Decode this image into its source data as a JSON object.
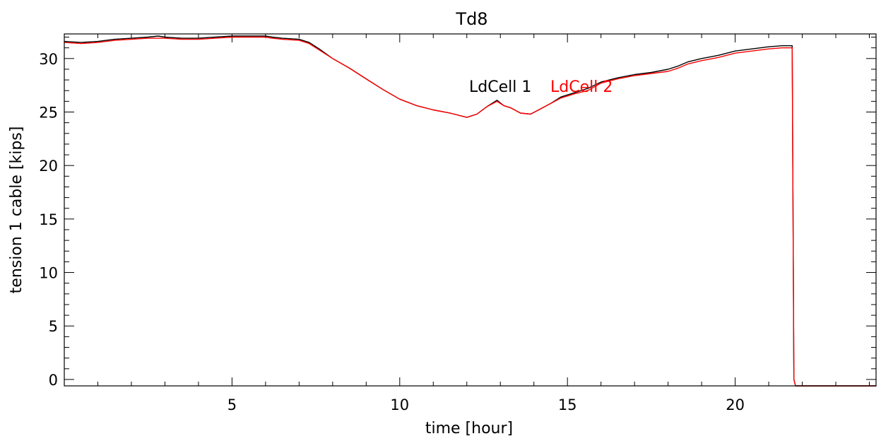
{
  "chart_data": {
    "type": "line",
    "title": "Td8",
    "xlabel": "time [hour]",
    "ylabel": "tension 1 cable [kips]",
    "xlim": [
      0.0,
      24.2
    ],
    "ylim": [
      -0.6,
      32.3
    ],
    "xticks": [
      5,
      10,
      15,
      20
    ],
    "xtick_labels": [
      "5",
      "10",
      "15",
      "20"
    ],
    "yticks": [
      0,
      5,
      10,
      15,
      20,
      25,
      30
    ],
    "ytick_labels": [
      "0",
      "5",
      "10",
      "15",
      "20",
      "25",
      "30"
    ],
    "x_minor_step": 1,
    "y_minor_step": 1,
    "grid": false,
    "legend_placement": "inside-top-center",
    "series": [
      {
        "name": "LdCell 1",
        "color": "#000000",
        "x": [
          0.0,
          0.5,
          1.0,
          1.5,
          2.0,
          2.5,
          2.8,
          3.0,
          3.5,
          4.0,
          4.5,
          5.0,
          5.5,
          6.0,
          6.2,
          6.5,
          7.0,
          7.3,
          7.6,
          8.0,
          8.5,
          9.0,
          9.5,
          10.0,
          10.5,
          11.0,
          11.5,
          12.0,
          12.3,
          12.6,
          12.9,
          13.1,
          13.3,
          13.6,
          13.9,
          14.2,
          14.5,
          14.8,
          15.2,
          15.6,
          16.0,
          16.5,
          17.0,
          17.5,
          18.0,
          18.3,
          18.6,
          19.0,
          19.5,
          20.0,
          20.5,
          21.0,
          21.4,
          21.7,
          21.75,
          21.8,
          22.5,
          23.5,
          24.2
        ],
        "y": [
          31.6,
          31.5,
          31.6,
          31.8,
          31.9,
          32.0,
          32.1,
          32.0,
          31.9,
          31.9,
          32.0,
          32.1,
          32.1,
          32.1,
          32.0,
          31.9,
          31.8,
          31.5,
          30.9,
          30.0,
          29.1,
          28.1,
          27.1,
          26.2,
          25.6,
          25.2,
          24.9,
          24.5,
          24.8,
          25.5,
          26.1,
          25.6,
          25.4,
          24.9,
          24.8,
          25.3,
          25.8,
          26.4,
          26.8,
          27.2,
          27.8,
          28.2,
          28.5,
          28.7,
          29.0,
          29.3,
          29.7,
          30.0,
          30.3,
          30.7,
          30.9,
          31.1,
          31.2,
          31.2,
          0.0,
          -0.6,
          -0.6,
          -0.6,
          -0.6
        ]
      },
      {
        "name": "LdCell 2",
        "color": "#ff0000",
        "x": [
          0.0,
          0.5,
          1.0,
          1.5,
          2.0,
          2.5,
          2.8,
          3.0,
          3.5,
          4.0,
          4.5,
          5.0,
          5.5,
          6.0,
          6.2,
          6.5,
          7.0,
          7.3,
          7.6,
          8.0,
          8.5,
          9.0,
          9.5,
          10.0,
          10.5,
          11.0,
          11.5,
          12.0,
          12.3,
          12.6,
          12.9,
          13.1,
          13.3,
          13.6,
          13.9,
          14.2,
          14.5,
          14.8,
          15.2,
          15.6,
          16.0,
          16.5,
          17.0,
          17.5,
          18.0,
          18.3,
          18.6,
          19.0,
          19.5,
          20.0,
          20.5,
          21.0,
          21.4,
          21.7,
          21.75,
          21.8,
          22.5,
          23.5,
          24.2
        ],
        "y": [
          31.5,
          31.4,
          31.5,
          31.7,
          31.8,
          31.9,
          31.9,
          31.9,
          31.8,
          31.8,
          31.9,
          32.0,
          32.0,
          32.0,
          31.9,
          31.8,
          31.7,
          31.4,
          30.8,
          30.0,
          29.1,
          28.1,
          27.1,
          26.2,
          25.6,
          25.2,
          24.9,
          24.5,
          24.8,
          25.5,
          26.0,
          25.6,
          25.4,
          24.9,
          24.8,
          25.3,
          25.8,
          26.3,
          26.7,
          27.0,
          27.7,
          28.1,
          28.4,
          28.6,
          28.8,
          29.1,
          29.5,
          29.8,
          30.1,
          30.5,
          30.7,
          30.9,
          31.0,
          31.0,
          0.0,
          -0.6,
          -0.6,
          -0.6,
          -0.6
        ]
      }
    ]
  }
}
